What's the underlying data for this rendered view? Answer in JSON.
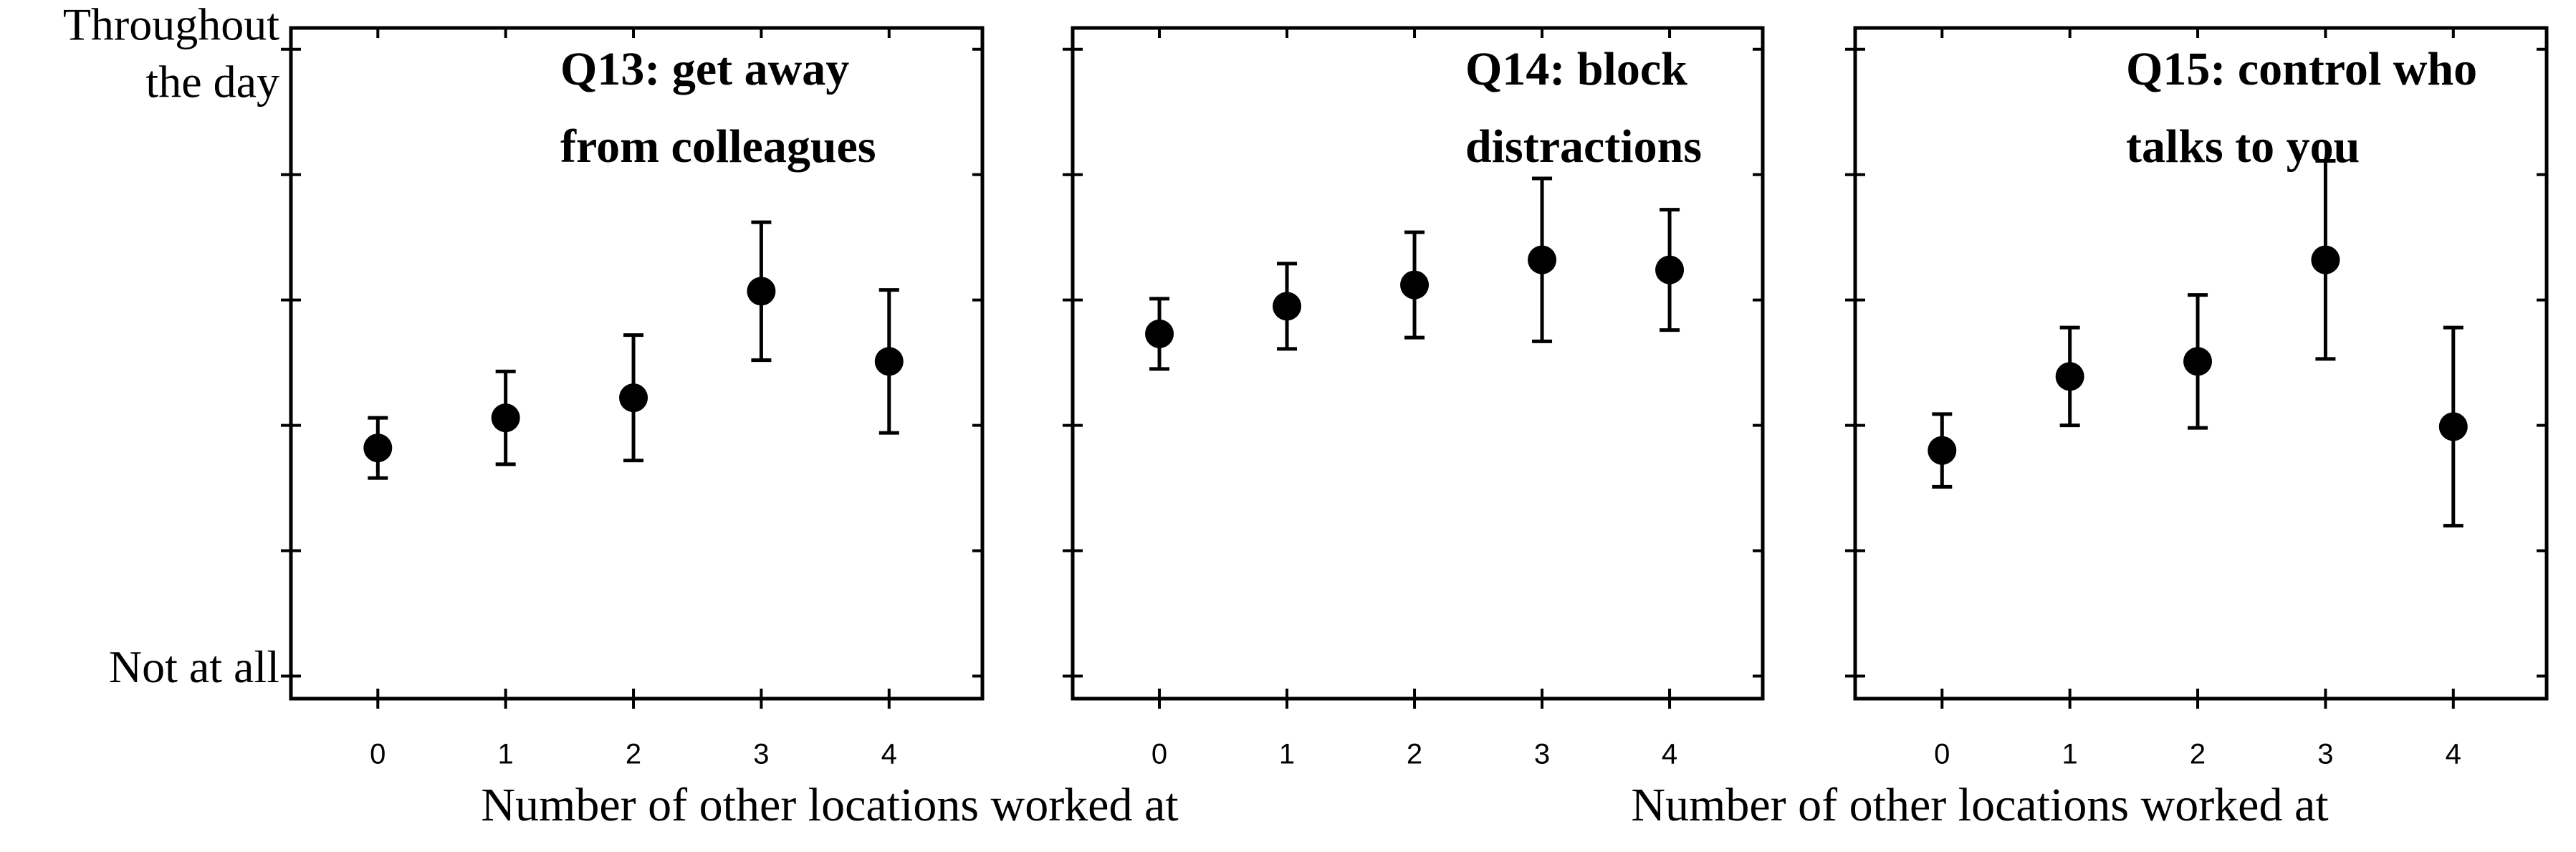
{
  "chart_data": [
    {
      "type": "scatter",
      "title": [
        "Q13: get away",
        "from colleagues"
      ],
      "x": [
        0,
        1,
        2,
        3,
        4
      ],
      "values": [
        2.82,
        3.06,
        3.22,
        4.07,
        3.51
      ],
      "errors": [
        0.24,
        0.37,
        0.5,
        0.55,
        0.57
      ],
      "color": "#000000",
      "xlim": [
        -0.68,
        4.73
      ],
      "xticks": [
        0,
        1,
        2,
        3,
        4
      ],
      "ylim": [
        0.82,
        6.17
      ],
      "yticks": [
        {
          "value": 1,
          "label": "Not at all"
        },
        {
          "value": 2,
          "label": null
        },
        {
          "value": 3,
          "label": null
        },
        {
          "value": 4,
          "label": null
        },
        {
          "value": 5,
          "label": null
        },
        {
          "value": 6,
          "label": [
            "Throughout",
            "the day"
          ]
        }
      ],
      "xlabel": "Number of other locations worked at"
    },
    {
      "type": "scatter",
      "title": [
        "Q14: block",
        "distractions"
      ],
      "x": [
        0,
        1,
        2,
        3,
        4
      ],
      "values": [
        3.73,
        3.95,
        4.12,
        4.32,
        4.24
      ],
      "errors": [
        0.28,
        0.34,
        0.42,
        0.65,
        0.48
      ],
      "color": "#000000",
      "xlim": [
        -0.68,
        4.73
      ],
      "xticks": [
        0,
        1,
        2,
        3,
        4
      ],
      "ylim": [
        0.82,
        6.17
      ],
      "yticks": [
        {
          "value": 1,
          "label": null
        },
        {
          "value": 2,
          "label": null
        },
        {
          "value": 3,
          "label": null
        },
        {
          "value": 4,
          "label": null
        },
        {
          "value": 5,
          "label": null
        },
        {
          "value": 6,
          "label": null
        }
      ]
    },
    {
      "type": "scatter",
      "title": [
        "Q15: control who",
        "talks to you"
      ],
      "x": [
        0,
        1,
        2,
        3,
        4
      ],
      "values": [
        2.8,
        3.39,
        3.51,
        4.32,
        2.99
      ],
      "errors": [
        0.29,
        0.39,
        0.53,
        0.79,
        0.79
      ],
      "color": "#000000",
      "xlim": [
        -0.68,
        4.73
      ],
      "xticks": [
        0,
        1,
        2,
        3,
        4
      ],
      "ylim": [
        0.82,
        6.17
      ],
      "yticks": [
        {
          "value": 1,
          "label": null
        },
        {
          "value": 2,
          "label": null
        },
        {
          "value": 3,
          "label": null
        },
        {
          "value": 4,
          "label": null
        },
        {
          "value": 5,
          "label": null
        },
        {
          "value": 6,
          "label": null
        }
      ],
      "xlabel": "Number of other locations worked at"
    }
  ]
}
